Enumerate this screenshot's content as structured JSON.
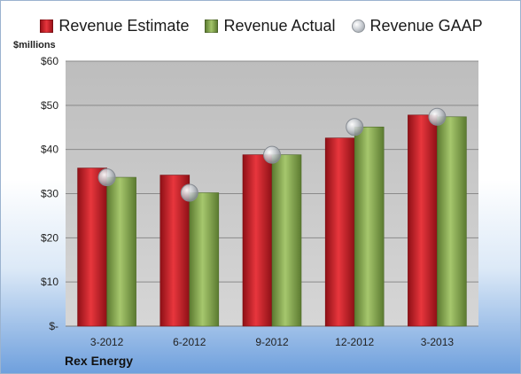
{
  "legend": {
    "estimate": "Revenue Estimate",
    "actual": "Revenue Actual",
    "gaap": "Revenue GAAP"
  },
  "unit_label": "$millions",
  "company": "Rex Energy",
  "colors": {
    "estimate": "#d0202a",
    "actual": "#8db255",
    "gaap": "#b8bcc2",
    "plot_background": "#c8c8c8"
  },
  "chart_data": {
    "type": "bar",
    "categories": [
      "3-2012",
      "6-2012",
      "9-2012",
      "12-2012",
      "3-2013"
    ],
    "series": [
      {
        "name": "Revenue Estimate",
        "kind": "bar",
        "values": [
          35.8,
          34.2,
          38.8,
          42.6,
          47.8
        ]
      },
      {
        "name": "Revenue Actual",
        "kind": "bar",
        "values": [
          33.7,
          30.2,
          38.8,
          45.1,
          47.4
        ]
      },
      {
        "name": "Revenue GAAP",
        "kind": "marker",
        "values": [
          33.7,
          30.2,
          38.8,
          45.1,
          47.4
        ]
      }
    ],
    "ylim": [
      0,
      60
    ],
    "y_ticks": [
      0,
      10,
      20,
      30,
      40,
      50,
      60
    ],
    "y_tick_labels": [
      "$-",
      "$10",
      "$20",
      "$30",
      "$40",
      "$50",
      "$60"
    ],
    "ylabel": "$millions",
    "xlabel": "",
    "grid": true,
    "legend_position": "top"
  }
}
